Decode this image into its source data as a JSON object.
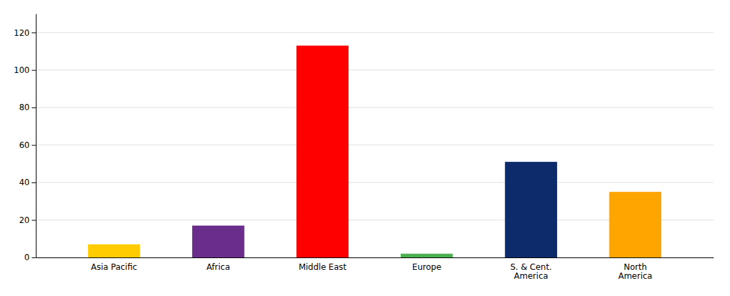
{
  "chart_data": {
    "type": "bar",
    "categories": [
      "Asia Pacific",
      "Africa",
      "Middle East",
      "Europe",
      "S. & Cent.\nAmerica",
      "North\nAmerica"
    ],
    "values": [
      7,
      17,
      113,
      2,
      51,
      35
    ],
    "colors": [
      "#FFCC00",
      "#6B2D8B",
      "#FF0000",
      "#4CAF50",
      "#0D2A6B",
      "#FFA500"
    ],
    "ylim": [
      0,
      130
    ],
    "yticks": [
      0,
      20,
      40,
      60,
      80,
      100,
      120
    ],
    "grid": true
  }
}
